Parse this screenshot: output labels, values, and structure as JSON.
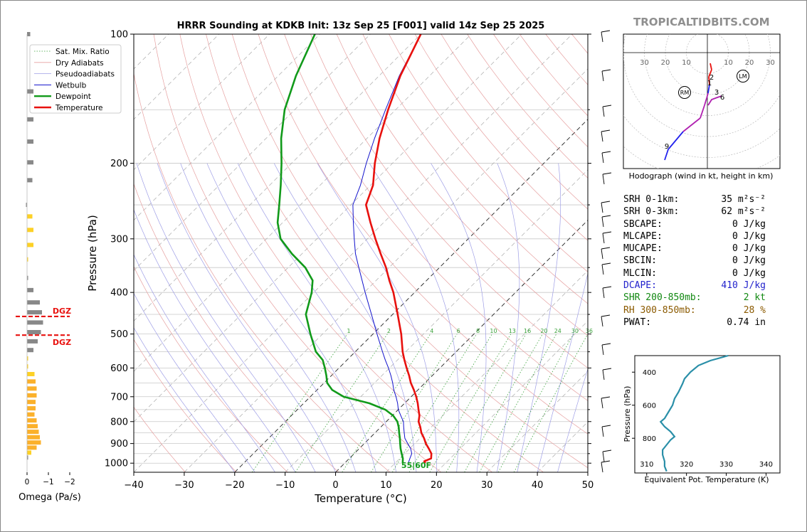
{
  "brand": "TROPICALTIDBITS.COM",
  "chart_data": {
    "type": "line",
    "title": "HRRR Sounding at KDKB Init: 13z Sep 25 [F001] valid 14z Sep 25 2025",
    "xlabel": "Temperature (°C)",
    "ylabel": "Pressure (hPa)",
    "xlim": [
      -40,
      50
    ],
    "ylim": [
      1050,
      100
    ],
    "yscale": "log",
    "skew": true,
    "xticks": [
      -40,
      -30,
      -20,
      -10,
      0,
      10,
      20,
      30,
      40,
      50
    ],
    "xtick_labels": [
      "−40",
      "−30",
      "−20",
      "−10",
      "0",
      "10",
      "20",
      "30",
      "40",
      "50"
    ],
    "yticks": [
      100,
      200,
      300,
      400,
      500,
      600,
      700,
      800,
      900,
      1000
    ],
    "legend": {
      "placement": "top-left",
      "entries": [
        "Sat. Mix. Ratio",
        "Dry Adiabats",
        "Pseudoadiabats",
        "Wetbulb",
        "Dewpoint",
        "Temperature"
      ]
    },
    "mixing_ratio_labels": [
      "1",
      "2",
      "4",
      "6",
      "8",
      "10",
      "13",
      "16",
      "20",
      "24",
      "30",
      "36"
    ],
    "surface_label": "55|60F",
    "series": [
      {
        "name": "Temperature",
        "color": "#e8110e",
        "points": [
          [
            1000,
            16.0
          ],
          [
            990,
            15.4
          ],
          [
            975,
            16.2
          ],
          [
            950,
            15.3
          ],
          [
            925,
            13.8
          ],
          [
            900,
            12.2
          ],
          [
            875,
            10.8
          ],
          [
            850,
            9.2
          ],
          [
            825,
            7.9
          ],
          [
            800,
            6.4
          ],
          [
            775,
            5.4
          ],
          [
            750,
            4.0
          ],
          [
            725,
            2.6
          ],
          [
            700,
            1.0
          ],
          [
            675,
            -0.8
          ],
          [
            650,
            -2.8
          ],
          [
            625,
            -4.6
          ],
          [
            600,
            -6.6
          ],
          [
            575,
            -8.6
          ],
          [
            550,
            -10.6
          ],
          [
            500,
            -14.4
          ],
          [
            450,
            -19.0
          ],
          [
            400,
            -24.2
          ],
          [
            375,
            -27.4
          ],
          [
            350,
            -30.6
          ],
          [
            325,
            -34.4
          ],
          [
            300,
            -38.4
          ],
          [
            275,
            -42.6
          ],
          [
            250,
            -47.0
          ],
          [
            225,
            -49.5
          ],
          [
            200,
            -53.5
          ],
          [
            175,
            -57.5
          ],
          [
            150,
            -61.5
          ],
          [
            125,
            -65.8
          ],
          [
            100,
            -70.0
          ]
        ]
      },
      {
        "name": "Dewpoint",
        "color": "#119a1a",
        "points": [
          [
            1000,
            11.5
          ],
          [
            975,
            10.6
          ],
          [
            950,
            9.4
          ],
          [
            925,
            8.2
          ],
          [
            900,
            7.1
          ],
          [
            875,
            6.0
          ],
          [
            850,
            4.8
          ],
          [
            825,
            3.6
          ],
          [
            800,
            2.2
          ],
          [
            775,
            0.2
          ],
          [
            750,
            -2.6
          ],
          [
            725,
            -7.0
          ],
          [
            700,
            -13.4
          ],
          [
            675,
            -17.0
          ],
          [
            650,
            -19.4
          ],
          [
            625,
            -21.0
          ],
          [
            600,
            -22.8
          ],
          [
            575,
            -24.8
          ],
          [
            550,
            -27.8
          ],
          [
            500,
            -32.4
          ],
          [
            450,
            -37.2
          ],
          [
            400,
            -40.4
          ],
          [
            375,
            -42.6
          ],
          [
            350,
            -46.6
          ],
          [
            325,
            -52.0
          ],
          [
            300,
            -57.2
          ],
          [
            275,
            -61.0
          ],
          [
            250,
            -64.2
          ],
          [
            225,
            -67.8
          ],
          [
            200,
            -72.0
          ],
          [
            175,
            -77.0
          ],
          [
            150,
            -82.0
          ],
          [
            125,
            -86.5
          ],
          [
            100,
            -91.0
          ]
        ]
      },
      {
        "name": "Wetbulb",
        "color": "#1111cc",
        "points": [
          [
            1000,
            12.6
          ],
          [
            975,
            12.0
          ],
          [
            950,
            11.4
          ],
          [
            925,
            10.2
          ],
          [
            900,
            8.6
          ],
          [
            875,
            7.0
          ],
          [
            850,
            5.8
          ],
          [
            825,
            4.6
          ],
          [
            800,
            3.4
          ],
          [
            775,
            1.7
          ],
          [
            750,
            0.0
          ],
          [
            725,
            -1.4
          ],
          [
            700,
            -3.0
          ],
          [
            675,
            -4.8
          ],
          [
            650,
            -6.4
          ],
          [
            625,
            -8.2
          ],
          [
            600,
            -10.2
          ],
          [
            575,
            -12.4
          ],
          [
            550,
            -14.6
          ],
          [
            500,
            -19.2
          ],
          [
            450,
            -24.2
          ],
          [
            400,
            -29.8
          ],
          [
            375,
            -32.8
          ],
          [
            350,
            -36.0
          ],
          [
            325,
            -39.4
          ],
          [
            300,
            -42.6
          ],
          [
            275,
            -46.0
          ],
          [
            250,
            -49.6
          ],
          [
            225,
            -52.0
          ],
          [
            200,
            -55.2
          ],
          [
            175,
            -58.5
          ],
          [
            150,
            -62.0
          ],
          [
            125,
            -66.0
          ],
          [
            100,
            -70.0
          ]
        ]
      }
    ],
    "dgz_labels": [
      "DGZ",
      "DGZ"
    ]
  },
  "omega_panel": {
    "xlabel": "Omega (Pa/s)",
    "xticks": [
      "0",
      "−1",
      "−2"
    ],
    "bars": [
      {
        "p": 100,
        "v": -0.15,
        "c": "#888888"
      },
      {
        "p": 136,
        "v": -0.3,
        "c": "#888888"
      },
      {
        "p": 158,
        "v": -0.3,
        "c": "#888888"
      },
      {
        "p": 178,
        "v": -0.3,
        "c": "#888888"
      },
      {
        "p": 199,
        "v": -0.3,
        "c": "#888888"
      },
      {
        "p": 219,
        "v": -0.25,
        "c": "#888888"
      },
      {
        "p": 250,
        "v": 0.05,
        "c": "#888888"
      },
      {
        "p": 266,
        "v": -0.25,
        "c": "#fdd126"
      },
      {
        "p": 286,
        "v": -0.3,
        "c": "#fdd126"
      },
      {
        "p": 310,
        "v": -0.3,
        "c": "#fdd126"
      },
      {
        "p": 335,
        "v": -0.05,
        "c": "#fdd126"
      },
      {
        "p": 370,
        "v": -0.05,
        "c": "#888888"
      },
      {
        "p": 395,
        "v": -0.3,
        "c": "#888888"
      },
      {
        "p": 422,
        "v": -0.6,
        "c": "#888888"
      },
      {
        "p": 445,
        "v": -0.7,
        "c": "#888888"
      },
      {
        "p": 470,
        "v": -0.75,
        "c": "#888888"
      },
      {
        "p": 495,
        "v": -0.65,
        "c": "#888888"
      },
      {
        "p": 520,
        "v": -0.5,
        "c": "#888888"
      },
      {
        "p": 545,
        "v": -0.3,
        "c": "#888888"
      },
      {
        "p": 570,
        "v": -0.05,
        "c": "#fdd126"
      },
      {
        "p": 595,
        "v": -0.05,
        "c": "#fdd126"
      },
      {
        "p": 620,
        "v": -0.35,
        "c": "#fdd126"
      },
      {
        "p": 645,
        "v": -0.4,
        "c": "#fbb12b"
      },
      {
        "p": 670,
        "v": -0.45,
        "c": "#fbb12b"
      },
      {
        "p": 695,
        "v": -0.45,
        "c": "#fbb12b"
      },
      {
        "p": 720,
        "v": -0.4,
        "c": "#fbb12b"
      },
      {
        "p": 745,
        "v": -0.4,
        "c": "#fbb12b"
      },
      {
        "p": 770,
        "v": -0.35,
        "c": "#fbb12b"
      },
      {
        "p": 795,
        "v": -0.45,
        "c": "#fbb12b"
      },
      {
        "p": 820,
        "v": -0.5,
        "c": "#fbb12b"
      },
      {
        "p": 845,
        "v": -0.55,
        "c": "#fbb12b"
      },
      {
        "p": 870,
        "v": -0.6,
        "c": "#fbb12b"
      },
      {
        "p": 895,
        "v": -0.65,
        "c": "#fbb12b"
      },
      {
        "p": 920,
        "v": -0.45,
        "c": "#fbb12b"
      },
      {
        "p": 945,
        "v": -0.2,
        "c": "#fdd126"
      },
      {
        "p": 970,
        "v": -0.05,
        "c": "#888888"
      }
    ]
  },
  "hodograph": {
    "caption": "Hodograph (wind in kt, height in km)",
    "ring_labels_left": [
      "30",
      "20",
      "10"
    ],
    "ring_labels_right": [
      "10",
      "20",
      "30"
    ],
    "storm_motion_labels": [
      "RM",
      "LM"
    ],
    "height_labels": [
      "2",
      "1",
      "3",
      "6",
      "9"
    ]
  },
  "stats": [
    {
      "label": "SRH 0-1km:",
      "value": "35 m²s⁻²",
      "color": "#000000"
    },
    {
      "label": "SRH 0-3km:",
      "value": "62 m²s⁻²",
      "color": "#000000"
    },
    {
      "label": "SBCAPE:",
      "value": "0 J/kg",
      "color": "#000000"
    },
    {
      "label": "MLCAPE:",
      "value": "0 J/kg",
      "color": "#000000"
    },
    {
      "label": "MUCAPE:",
      "value": "0 J/kg",
      "color": "#000000"
    },
    {
      "label": "SBCIN:",
      "value": "0 J/kg",
      "color": "#000000"
    },
    {
      "label": "MLCIN:",
      "value": "0 J/kg",
      "color": "#000000"
    },
    {
      "label": "DCAPE:",
      "value": "410 J/kg",
      "color": "#2222cc"
    },
    {
      "label": "SHR 200-850mb:",
      "value": "2 kt",
      "color": "#118811"
    },
    {
      "label": "RH 300-850mb:",
      "value": "28 %",
      "color": "#8b5a00"
    },
    {
      "label": "PWAT:",
      "value": "0.74 in",
      "color": "#000000"
    }
  ],
  "theta_e_panel": {
    "xlabel": "Equivalent Pot. Temperature (K)",
    "ylabel": "Pressure (hPa)",
    "xticks": [
      "310",
      "320",
      "330",
      "340"
    ],
    "yticks": [
      "400",
      "600",
      "800"
    ],
    "color": "#2a8fa8",
    "profile": [
      [
        300,
        330.5
      ],
      [
        330,
        326
      ],
      [
        360,
        323
      ],
      [
        400,
        321
      ],
      [
        440,
        319.5
      ],
      [
        470,
        319
      ],
      [
        520,
        318
      ],
      [
        560,
        317
      ],
      [
        600,
        316.5
      ],
      [
        640,
        315.5
      ],
      [
        680,
        314.5
      ],
      [
        700,
        313.5
      ],
      [
        730,
        314.5
      ],
      [
        760,
        316
      ],
      [
        790,
        317
      ],
      [
        810,
        316
      ],
      [
        840,
        315
      ],
      [
        870,
        314
      ],
      [
        900,
        314
      ],
      [
        940,
        314.5
      ],
      [
        970,
        314.5
      ],
      [
        1000,
        315
      ]
    ]
  }
}
